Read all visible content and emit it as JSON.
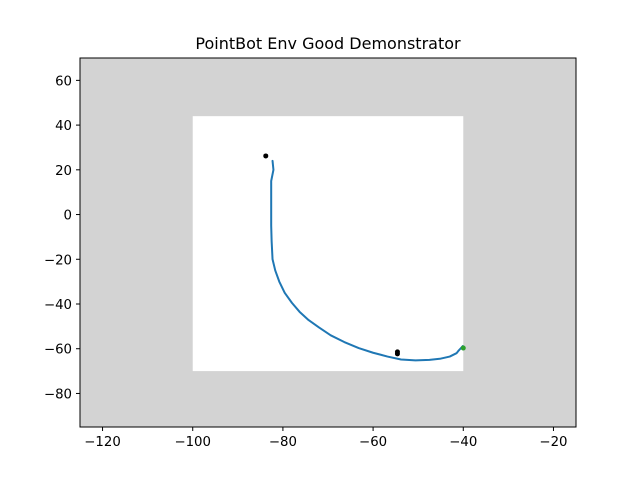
{
  "chart_data": {
    "type": "scatter",
    "title": "PointBot Env Good Demonstrator",
    "xlabel": "",
    "ylabel": "",
    "xlim": [
      -125,
      -15
    ],
    "ylim": [
      -95,
      70
    ],
    "xticks": [
      -120,
      -100,
      -80,
      -60,
      -40,
      -20
    ],
    "yticks": [
      -80,
      -60,
      -40,
      -20,
      0,
      20,
      40,
      60
    ],
    "xtick_labels": [
      "−120",
      "−100",
      "−80",
      "−60",
      "−40",
      "−20"
    ],
    "ytick_labels": [
      "−80",
      "−60",
      "−40",
      "−20",
      "0",
      "20",
      "40",
      "60"
    ],
    "grid": false,
    "background_color": "#d3d3d3",
    "free_region": {
      "x": [
        -100,
        -40
      ],
      "y": [
        -70,
        44
      ]
    },
    "free_region_color": "#ffffff",
    "trajectory": {
      "color": "#1f77b4",
      "x": [
        -82.3,
        -82.1,
        -82.6,
        -82.6,
        -82.6,
        -82.5,
        -82.3,
        -81.7,
        -80.8,
        -79.6,
        -78.0,
        -76.3,
        -74.3,
        -72.0,
        -69.4,
        -66.4,
        -63.2,
        -60.0,
        -56.8,
        -53.8,
        -50.6,
        -47.5,
        -45.2,
        -43.0,
        -41.5,
        -41.1,
        -40.6,
        -40.1
      ],
      "y": [
        24.0,
        20.0,
        15.0,
        5.0,
        -5.0,
        -12.0,
        -20.0,
        -25.0,
        -30.0,
        -35.0,
        -39.5,
        -43.5,
        -47.2,
        -50.5,
        -54.0,
        -57.0,
        -59.7,
        -61.8,
        -63.5,
        -64.8,
        -65.2,
        -65.0,
        -64.5,
        -63.5,
        -62.0,
        -61.0,
        -59.9,
        -58.8
      ]
    },
    "points": [
      {
        "name": "obstacle",
        "x": -83.8,
        "y": 26.2,
        "color": "#000000"
      },
      {
        "name": "obstacle",
        "x": -54.6,
        "y": -61.4,
        "color": "#000000"
      },
      {
        "name": "obstacle",
        "x": -54.6,
        "y": -62.3,
        "color": "#000000"
      },
      {
        "name": "goal",
        "x": -40.0,
        "y": -59.7,
        "color": "#2ca02c"
      }
    ]
  }
}
